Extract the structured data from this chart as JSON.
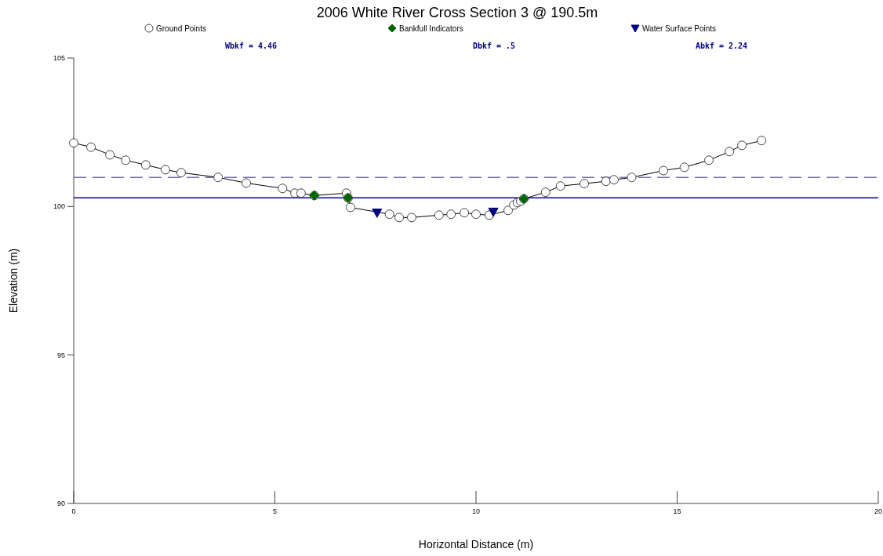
{
  "chart_data": {
    "type": "line",
    "title": "2006 White River Cross Section 3 @ 190.5m",
    "xlabel": "Horizontal Distance (m)",
    "ylabel": "Elevation (m)",
    "xlim": [
      0,
      20
    ],
    "xticks": [
      0,
      5,
      10,
      15,
      20
    ],
    "ylim": [
      90,
      105
    ],
    "yticks": [
      90,
      95,
      100,
      105
    ],
    "grid": false,
    "legend": "top",
    "annotations": [
      "Wbkf = 4.46",
      "Dbkf = .5",
      "Abkf = 2.24"
    ],
    "series": [
      {
        "name": "Ground Points",
        "type": "line",
        "marker": "circle",
        "color": "#000000",
        "x": [
          0,
          0.43,
          0.9,
          1.29,
          1.79,
          2.28,
          2.67,
          3.59,
          4.29,
          5.19,
          5.5,
          5.65,
          5.98,
          6.78,
          6.82,
          6.88,
          7.54,
          7.85,
          8.09,
          8.4,
          9.08,
          9.38,
          9.71,
          10.0,
          10.33,
          10.8,
          10.94,
          11.03,
          11.11,
          11.19,
          11.73,
          12.1,
          12.69,
          13.23,
          13.43,
          13.87,
          14.66,
          15.18,
          15.79,
          16.3,
          16.61,
          17.1
        ],
        "values": [
          102.14,
          102.0,
          101.74,
          101.56,
          101.4,
          101.24,
          101.14,
          100.98,
          100.79,
          100.61,
          100.45,
          100.45,
          100.37,
          100.45,
          100.29,
          99.97,
          null,
          99.74,
          99.63,
          99.63,
          99.71,
          99.74,
          99.79,
          99.74,
          99.71,
          99.87,
          100.05,
          100.13,
          100.18,
          100.26,
          100.48,
          100.69,
          100.77,
          100.85,
          100.9,
          100.98,
          101.21,
          101.32,
          101.56,
          101.85,
          102.06,
          102.22
        ]
      },
      {
        "name": "Bankfull Indicators",
        "type": "scatter",
        "marker": "diamond",
        "color": "#006400",
        "x": [
          5.98,
          6.82,
          11.19
        ],
        "values": [
          100.37,
          100.29,
          100.26
        ]
      },
      {
        "name": "Water Surface Points",
        "type": "scatter",
        "marker": "triangle",
        "color": "#000080",
        "x": [
          7.54,
          10.43
        ],
        "values": [
          99.79,
          99.82
        ]
      }
    ],
    "ref_lines": [
      {
        "axis": "y",
        "value": 100.98,
        "color": "#7070b0",
        "line_style": "dashed"
      },
      {
        "axis": "y",
        "value": 100.29,
        "color": "#0000a0",
        "line_style": "solid"
      }
    ]
  }
}
